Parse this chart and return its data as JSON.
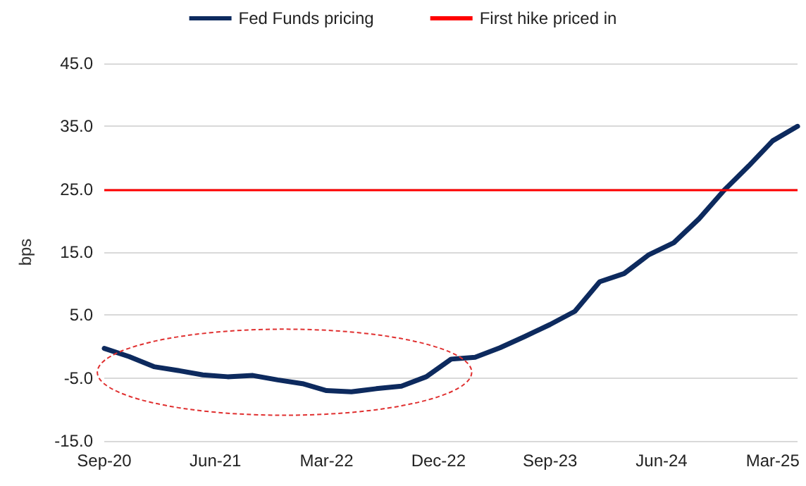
{
  "chart_data": {
    "type": "line",
    "ylabel": "bps",
    "x": [
      "2020-09",
      "2020-11",
      "2021-01",
      "2021-03",
      "2021-05",
      "2021-07",
      "2021-09",
      "2021-11",
      "2022-01",
      "2022-03",
      "2022-05",
      "2022-07",
      "2022-09",
      "2022-11",
      "2023-01",
      "2023-03",
      "2023-05",
      "2023-07",
      "2023-09",
      "2023-11",
      "2024-01",
      "2024-03",
      "2024-05",
      "2024-07",
      "2024-09",
      "2024-11",
      "2025-01",
      "2025-03",
      "2025-05"
    ],
    "series": [
      {
        "name": "Fed Funds pricing",
        "color": "#0d2a5e",
        "values": [
          -0.3,
          -1.6,
          -3.2,
          -3.8,
          -4.5,
          -4.8,
          -4.6,
          -5.3,
          -5.9,
          -7.0,
          -7.2,
          -6.7,
          -6.3,
          -4.8,
          -2.0,
          -1.7,
          -0.2,
          1.6,
          3.5,
          5.6,
          10.3,
          11.6,
          14.6,
          16.5,
          20.3,
          24.8,
          28.7,
          32.7,
          35.0
        ]
      }
    ],
    "ref_lines": [
      {
        "axis": "y",
        "value": 25,
        "label": "First hike priced in",
        "color": "#ff0000"
      }
    ],
    "xlim": [
      "2020-09",
      "2025-05"
    ],
    "xticks": [
      {
        "value": "2020-09",
        "label": "Sep-20"
      },
      {
        "value": "2021-06",
        "label": "Jun-21"
      },
      {
        "value": "2022-03",
        "label": "Mar-22"
      },
      {
        "value": "2022-12",
        "label": "Dec-22"
      },
      {
        "value": "2023-09",
        "label": "Sep-23"
      },
      {
        "value": "2024-06",
        "label": "Jun-24"
      },
      {
        "value": "2025-03",
        "label": "Mar-25"
      }
    ],
    "ylim": [
      -15,
      45
    ],
    "yticks": [
      {
        "value": -15,
        "label": "-15.0"
      },
      {
        "value": -5,
        "label": "-5.0"
      },
      {
        "value": 5,
        "label": "5.0"
      },
      {
        "value": 15,
        "label": "15.0"
      },
      {
        "value": 25,
        "label": "25.0"
      },
      {
        "value": 35,
        "label": "35.0"
      },
      {
        "value": 45,
        "label": "45.0"
      }
    ],
    "grid": "y",
    "legend": "top",
    "marker": "none",
    "line_style": "solid"
  }
}
